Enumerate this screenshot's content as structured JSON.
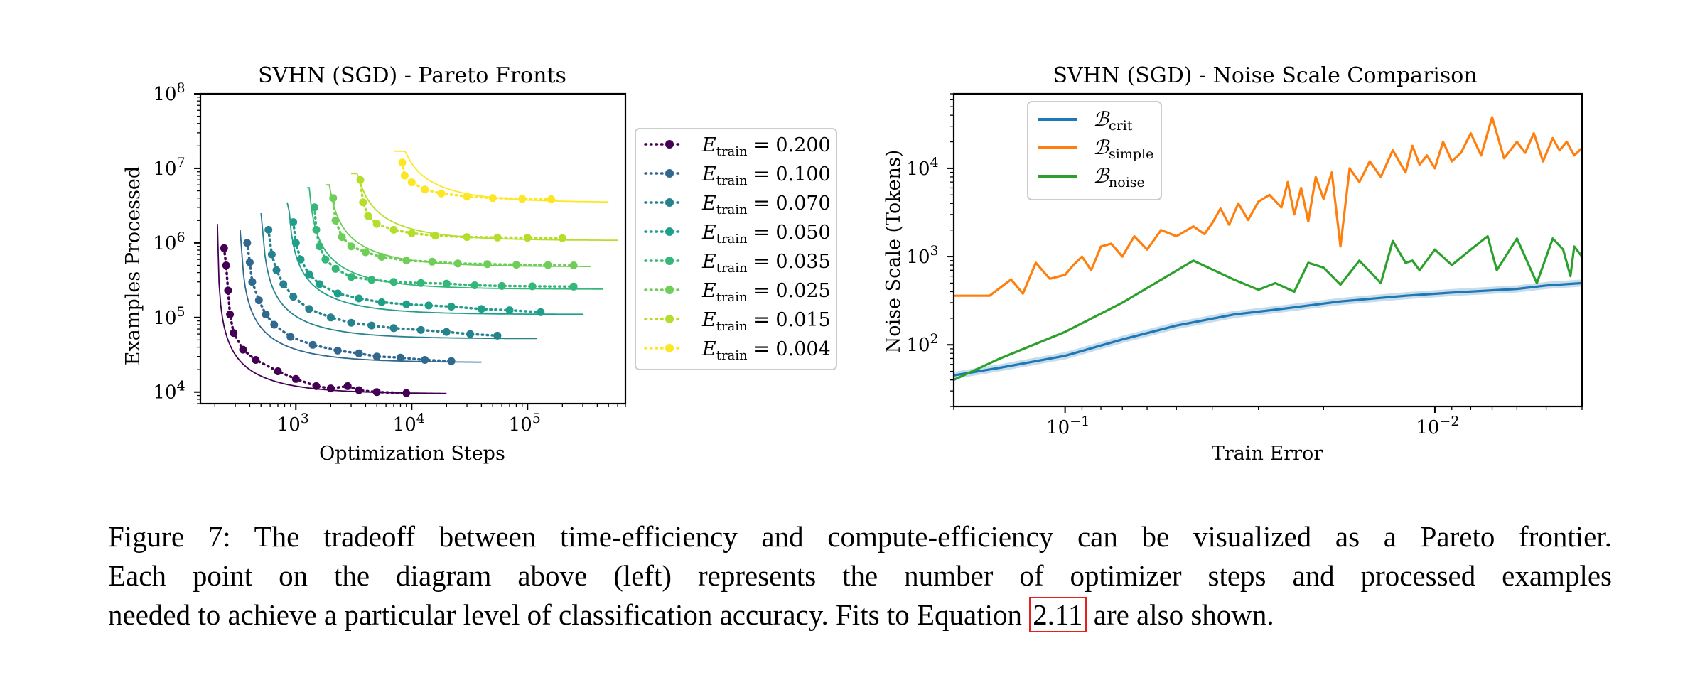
{
  "figure": {
    "caption": {
      "line1": "Figure 7: The tradeoff between time-efficiency and compute-efficiency can be visualized as a Pareto frontier.",
      "line2": "Each point on the diagram above (left) represents the number of optimizer steps and processed examples",
      "line3_pre": "needed to achieve a particular level of classification accuracy. Fits to Equation",
      "line3_ref": "2.11",
      "line3_post": "are also shown.",
      "ref_color": "#e8201c"
    }
  },
  "chart_data": [
    {
      "type": "scatter",
      "title": "SVHN (SGD) - Pareto Fronts",
      "xlabel": "Optimization Steps",
      "ylabel": "Examples Processed",
      "xscale": "log",
      "yscale": "log",
      "xlim": [
        150,
        700000
      ],
      "ylim": [
        7000,
        100000000
      ],
      "xticks": [
        1000,
        10000,
        100000
      ],
      "xtick_labels": [
        {
          "base": "10",
          "exp": "3"
        },
        {
          "base": "10",
          "exp": "4"
        },
        {
          "base": "10",
          "exp": "5"
        }
      ],
      "yticks": [
        10000,
        100000,
        1000000,
        10000000,
        100000000
      ],
      "ytick_labels": [
        {
          "base": "10",
          "exp": "4"
        },
        {
          "base": "10",
          "exp": "5"
        },
        {
          "base": "10",
          "exp": "6"
        },
        {
          "base": "10",
          "exp": "7"
        },
        {
          "base": "10",
          "exp": "8"
        }
      ],
      "grid": false,
      "legend_position": "outside-right",
      "legend_prefix": "E",
      "legend_subscript": "train",
      "series": [
        {
          "name": "0.200",
          "color": "#440154",
          "smin": 210,
          "emin": 9500,
          "xmax": 20000,
          "ymax": 1800000,
          "points": [
            [
              240,
              850000
            ],
            [
              250,
              500000
            ],
            [
              260,
              230000
            ],
            [
              270,
              110000
            ],
            [
              290,
              62000
            ],
            [
              350,
              37000
            ],
            [
              450,
              27000
            ],
            [
              700,
              19000
            ],
            [
              1000,
              15000
            ],
            [
              1500,
              12000
            ],
            [
              2000,
              11200
            ],
            [
              2800,
              12000
            ],
            [
              3500,
              10600
            ],
            [
              5000,
              10000
            ],
            [
              9000,
              9700
            ]
          ]
        },
        {
          "name": "0.100",
          "color": "#31688e",
          "smin": 330,
          "emin": 25000,
          "xmax": 40000,
          "ymax": 1500000,
          "points": [
            [
              380,
              1000000
            ],
            [
              400,
              550000
            ],
            [
              420,
              300000
            ],
            [
              480,
              170000
            ],
            [
              550,
              110000
            ],
            [
              650,
              80000
            ],
            [
              900,
              55000
            ],
            [
              1400,
              43000
            ],
            [
              2300,
              36000
            ],
            [
              3500,
              33000
            ],
            [
              5000,
              30000
            ],
            [
              8000,
              29000
            ],
            [
              13000,
              27000
            ],
            [
              22000,
              26000
            ]
          ]
        },
        {
          "name": "0.070",
          "color": "#26828e",
          "smin": 500,
          "emin": 52000,
          "xmax": 120000,
          "ymax": 2500000,
          "points": [
            [
              580,
              1500000
            ],
            [
              620,
              700000
            ],
            [
              680,
              430000
            ],
            [
              780,
              280000
            ],
            [
              950,
              190000
            ],
            [
              1300,
              130000
            ],
            [
              2000,
              100000
            ],
            [
              3000,
              85000
            ],
            [
              4500,
              78000
            ],
            [
              7000,
              72000
            ],
            [
              12000,
              68000
            ],
            [
              20000,
              64000
            ],
            [
              32000,
              60000
            ],
            [
              55000,
              57000
            ]
          ]
        },
        {
          "name": "0.050",
          "color": "#1f9e89",
          "smin": 840,
          "emin": 110000,
          "xmax": 300000,
          "ymax": 3500000,
          "points": [
            [
              950,
              1900000
            ],
            [
              1000,
              1000000
            ],
            [
              1100,
              600000
            ],
            [
              1300,
              380000
            ],
            [
              1600,
              280000
            ],
            [
              2300,
              210000
            ],
            [
              3500,
              180000
            ],
            [
              5500,
              160000
            ],
            [
              9000,
              150000
            ],
            [
              14000,
              145000
            ],
            [
              22000,
              140000
            ],
            [
              40000,
              130000
            ],
            [
              70000,
              125000
            ],
            [
              130000,
              118000
            ]
          ]
        },
        {
          "name": "0.035",
          "color": "#35b779",
          "smin": 1250,
          "emin": 240000,
          "xmax": 450000,
          "ymax": 5500000,
          "points": [
            [
              1450,
              3000000
            ],
            [
              1500,
              1500000
            ],
            [
              1600,
              900000
            ],
            [
              1800,
              600000
            ],
            [
              2200,
              450000
            ],
            [
              3000,
              350000
            ],
            [
              4500,
              320000
            ],
            [
              7000,
              300000
            ],
            [
              12000,
              290000
            ],
            [
              20000,
              285000
            ],
            [
              35000,
              270000
            ],
            [
              60000,
              265000
            ],
            [
              110000,
              262000
            ],
            [
              250000,
              260000
            ]
          ]
        },
        {
          "name": "0.025",
          "color": "#6ece58",
          "smin": 1800,
          "emin": 480000,
          "xmax": 350000,
          "ymax": 6000000,
          "points": [
            [
              2100,
              4000000
            ],
            [
              2200,
              2000000
            ],
            [
              2500,
              1200000
            ],
            [
              3000,
              900000
            ],
            [
              4000,
              750000
            ],
            [
              5500,
              650000
            ],
            [
              9000,
              580000
            ],
            [
              15000,
              560000
            ],
            [
              25000,
              530000
            ],
            [
              45000,
              520000
            ],
            [
              80000,
              510000
            ],
            [
              150000,
              505000
            ],
            [
              250000,
              500000
            ]
          ]
        },
        {
          "name": "0.015",
          "color": "#b5de2b",
          "smin": 3000,
          "emin": 1080000,
          "xmax": 600000,
          "ymax": 8500000,
          "points": [
            [
              3600,
              7000000
            ],
            [
              3800,
              3500000
            ],
            [
              4200,
              2300000
            ],
            [
              5000,
              1800000
            ],
            [
              7000,
              1500000
            ],
            [
              10000,
              1350000
            ],
            [
              16000,
              1250000
            ],
            [
              30000,
              1200000
            ],
            [
              55000,
              1180000
            ],
            [
              100000,
              1170000
            ],
            [
              200000,
              1160000
            ]
          ]
        },
        {
          "name": "0.004",
          "color": "#fde725",
          "smin": 7000,
          "emin": 3500000,
          "xmax": 500000,
          "ymax": 17000000,
          "points": [
            [
              8300,
              12000000
            ],
            [
              8700,
              8000000
            ],
            [
              10000,
              6500000
            ],
            [
              13000,
              5200000
            ],
            [
              18000,
              4600000
            ],
            [
              30000,
              4200000
            ],
            [
              50000,
              4000000
            ],
            [
              90000,
              3900000
            ],
            [
              160000,
              3850000
            ]
          ]
        }
      ]
    },
    {
      "type": "line",
      "title": "SVHN (SGD) - Noise Scale Comparison",
      "xlabel": "Train Error",
      "ylabel": "Noise Scale (Tokens)",
      "xscale": "log",
      "xreversed": true,
      "yscale": "log",
      "xlim": [
        0.2,
        0.004
      ],
      "ylim": [
        20,
        70000
      ],
      "xticks": [
        0.1,
        0.01
      ],
      "xtick_labels": [
        {
          "base": "10",
          "exp": "−1"
        },
        {
          "base": "10",
          "exp": "−2"
        }
      ],
      "yticks": [
        100,
        1000,
        10000
      ],
      "ytick_labels": [
        {
          "base": "10",
          "exp": "2"
        },
        {
          "base": "10",
          "exp": "3"
        },
        {
          "base": "10",
          "exp": "4"
        }
      ],
      "grid": false,
      "legend_position": "top-left",
      "series": [
        {
          "name": "crit",
          "label_base": "ℬ",
          "label_sub": "crit",
          "color": "#1f77b4",
          "x": [
            0.2,
            0.15,
            0.1,
            0.07,
            0.05,
            0.035,
            0.025,
            0.018,
            0.012,
            0.009,
            0.006,
            0.005,
            0.004
          ],
          "y": [
            45,
            55,
            75,
            115,
            165,
            220,
            260,
            310,
            360,
            390,
            430,
            470,
            500
          ]
        },
        {
          "name": "simple",
          "label_base": "ℬ",
          "label_sub": "simple",
          "color": "#ff7f0e",
          "x": [
            0.2,
            0.16,
            0.14,
            0.13,
            0.12,
            0.11,
            0.1,
            0.095,
            0.09,
            0.085,
            0.08,
            0.075,
            0.07,
            0.065,
            0.06,
            0.055,
            0.05,
            0.045,
            0.042,
            0.04,
            0.038,
            0.036,
            0.034,
            0.032,
            0.03,
            0.028,
            0.026,
            0.025,
            0.024,
            0.023,
            0.022,
            0.021,
            0.02,
            0.019,
            0.018,
            0.017,
            0.016,
            0.015,
            0.014,
            0.013,
            0.012,
            0.0115,
            0.011,
            0.0105,
            0.01,
            0.0095,
            0.009,
            0.0085,
            0.008,
            0.0075,
            0.007,
            0.0065,
            0.006,
            0.0057,
            0.0054,
            0.0051,
            0.0048,
            0.0046,
            0.0044,
            0.0042,
            0.004
          ],
          "y": [
            360,
            360,
            550,
            380,
            850,
            560,
            620,
            800,
            1000,
            700,
            1300,
            1400,
            1000,
            1700,
            1200,
            2000,
            1700,
            2200,
            1800,
            2400,
            3500,
            2300,
            4000,
            2600,
            4200,
            5000,
            3600,
            7000,
            3000,
            6000,
            2500,
            8000,
            4500,
            9000,
            1300,
            10000,
            7000,
            12000,
            8000,
            16000,
            9000,
            18000,
            11000,
            14000,
            10000,
            20000,
            12000,
            15000,
            25000,
            14000,
            38000,
            13000,
            20000,
            15000,
            25000,
            12000,
            22000,
            16000,
            20000,
            14000,
            17000
          ]
        },
        {
          "name": "noise",
          "label_base": "ℬ",
          "label_sub": "noise",
          "color": "#2ca02c",
          "x": [
            0.2,
            0.15,
            0.1,
            0.07,
            0.045,
            0.035,
            0.03,
            0.027,
            0.024,
            0.022,
            0.02,
            0.018,
            0.016,
            0.014,
            0.013,
            0.012,
            0.0115,
            0.011,
            0.01,
            0.009,
            0.008,
            0.0072,
            0.0068,
            0.006,
            0.0053,
            0.0048,
            0.0045,
            0.0043,
            0.0042,
            0.004
          ],
          "y": [
            40,
            70,
            140,
            300,
            900,
            550,
            420,
            500,
            400,
            850,
            750,
            480,
            900,
            500,
            1500,
            850,
            900,
            700,
            1200,
            800,
            1200,
            1700,
            700,
            1600,
            500,
            1600,
            1200,
            600,
            1300,
            1000
          ]
        }
      ]
    }
  ]
}
